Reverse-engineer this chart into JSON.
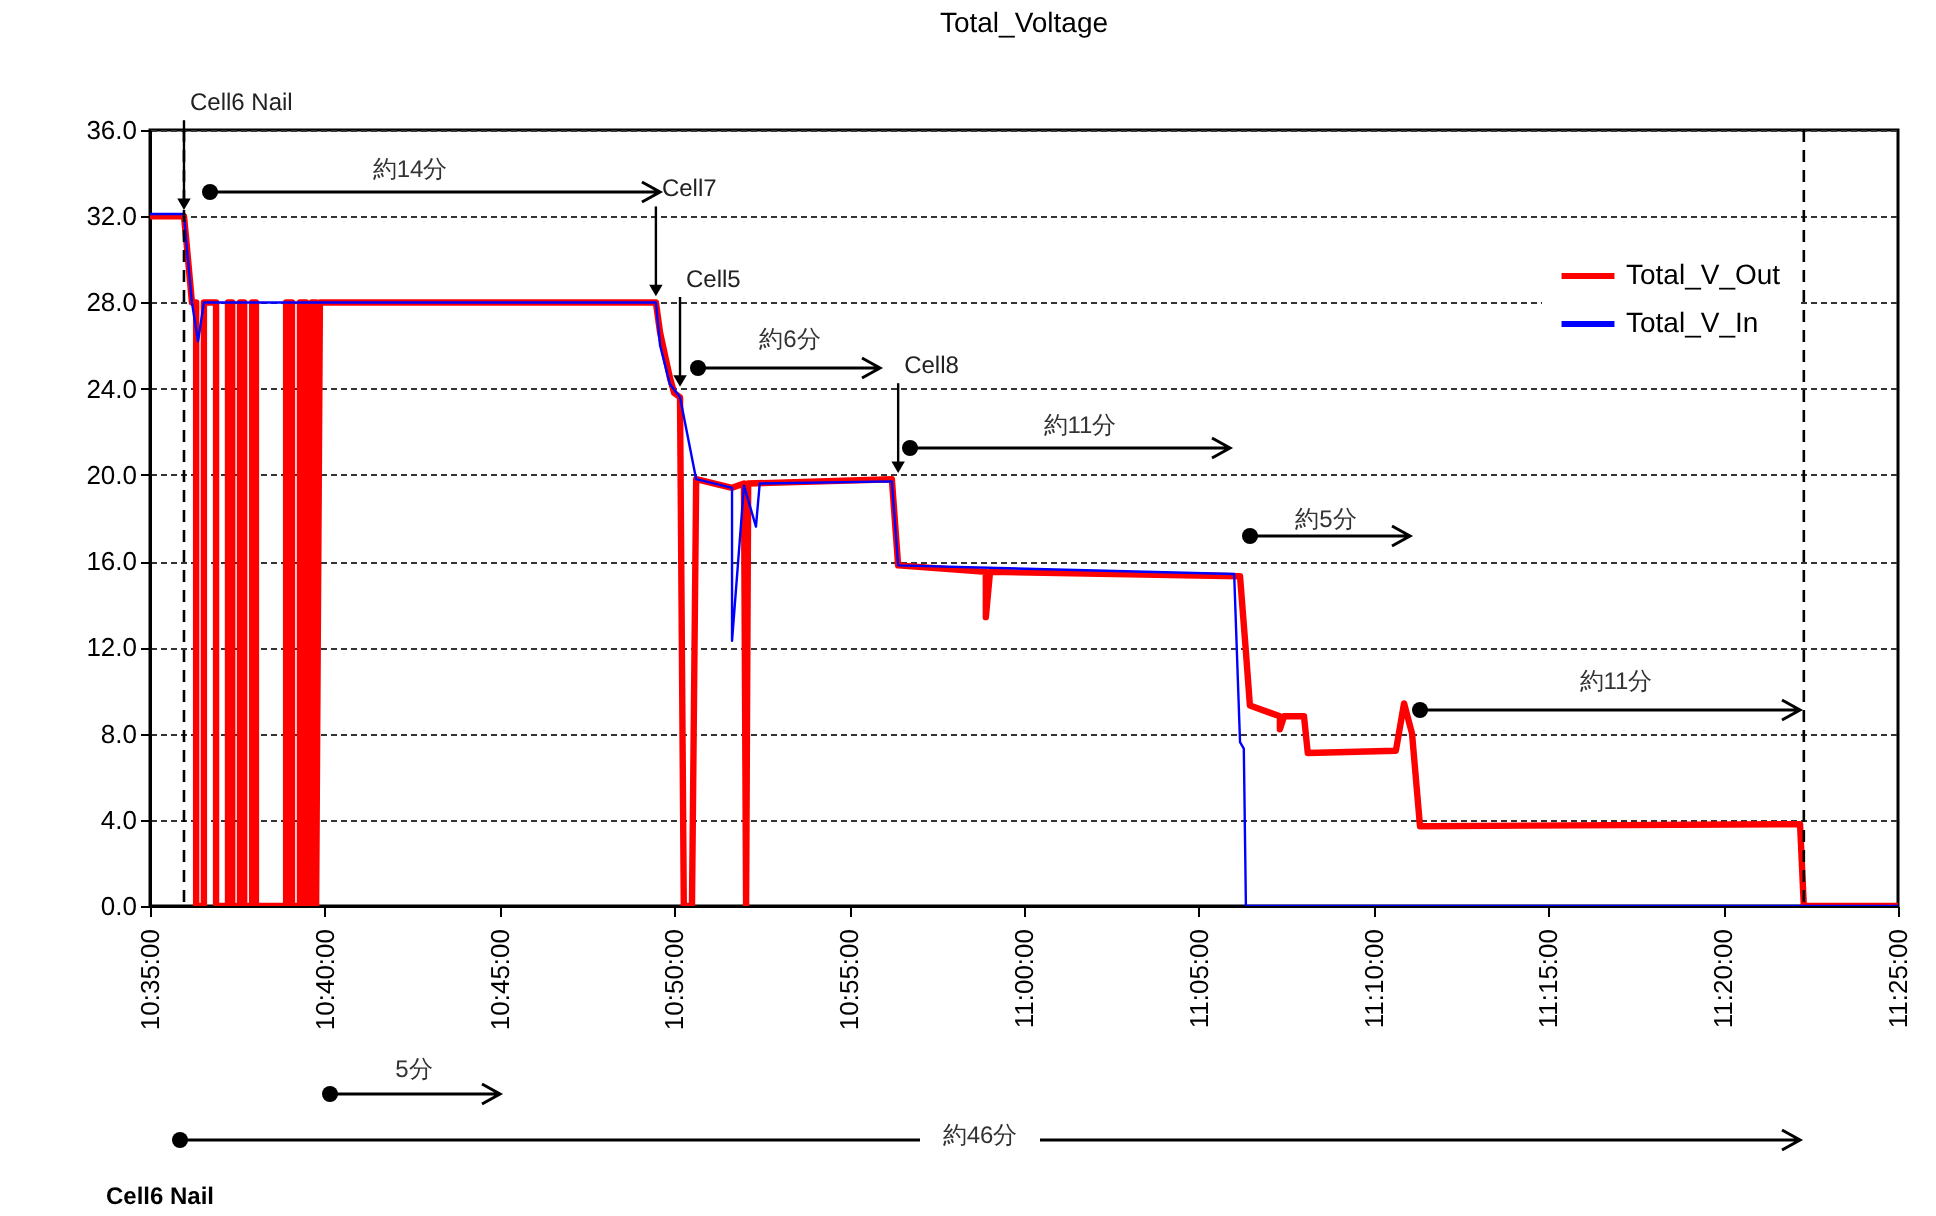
{
  "chart_data": {
    "type": "line",
    "title": "Total_Voltage",
    "xlim": [
      10.5833,
      11.4167
    ],
    "xticks": [
      {
        "value": 10.5833,
        "label": "10:35:00"
      },
      {
        "value": 10.6667,
        "label": "10:40:00"
      },
      {
        "value": 10.75,
        "label": "10:45:00"
      },
      {
        "value": 10.8333,
        "label": "10:50:00"
      },
      {
        "value": 10.9167,
        "label": "10:55:00"
      },
      {
        "value": 11.0,
        "label": "11:00:00"
      },
      {
        "value": 11.0833,
        "label": "11:05:00"
      },
      {
        "value": 11.1667,
        "label": "11:10:00"
      },
      {
        "value": 11.25,
        "label": "11:15:00"
      },
      {
        "value": 11.3333,
        "label": "11:20:00"
      },
      {
        "value": 11.4167,
        "label": "11:25:00"
      }
    ],
    "ylim": [
      0,
      36
    ],
    "yticks": [
      {
        "value": 0,
        "label": "0.0"
      },
      {
        "value": 4,
        "label": "4.0"
      },
      {
        "value": 8,
        "label": "8.0"
      },
      {
        "value": 12,
        "label": "12.0"
      },
      {
        "value": 16,
        "label": "16.0"
      },
      {
        "value": 20,
        "label": "20.0"
      },
      {
        "value": 24,
        "label": "24.0"
      },
      {
        "value": 28,
        "label": "28.0"
      },
      {
        "value": 32,
        "label": "32.0"
      },
      {
        "value": 36,
        "label": "36.0"
      }
    ],
    "grid": "y",
    "legend": "top right",
    "line_style": "solid",
    "series": [
      {
        "name": "Total_V_Out",
        "color": "#ff0000",
        "x": [
          10.5833,
          10.5995,
          10.6005,
          10.6033,
          10.6053,
          10.6053,
          10.609,
          10.609,
          10.6148,
          10.6148,
          10.6205,
          10.6205,
          10.6225,
          10.6225,
          10.6262,
          10.6262,
          10.6282,
          10.6282,
          10.632,
          10.632,
          10.6338,
          10.6338,
          10.6482,
          10.6482,
          10.651,
          10.651,
          10.6548,
          10.6548,
          10.6577,
          10.6577,
          10.6605,
          10.6605,
          10.6625,
          10.6625,
          10.6643,
          10.8245,
          10.8265,
          10.8312,
          10.8332,
          10.836,
          10.8378,
          10.8417,
          10.8437,
          10.8608,
          10.8665,
          10.8675,
          10.8685,
          10.937,
          10.94,
          10.9818,
          10.9818,
          10.9838,
          11.103,
          11.1058,
          11.1077,
          11.122,
          11.122,
          11.124,
          11.1335,
          11.1353,
          11.1773,
          11.1812,
          11.185,
          11.1888,
          11.37,
          11.3718,
          11.4167
        ],
        "values": [
          32.0,
          32.0,
          31.0,
          28.0,
          28.0,
          0,
          0,
          28.0,
          28.0,
          0,
          0,
          28.0,
          28.0,
          0,
          0,
          28.0,
          28.0,
          0,
          0,
          28.0,
          28.0,
          0,
          0,
          28.0,
          28.0,
          0,
          0,
          28.0,
          28.0,
          0,
          0,
          28.0,
          28.0,
          0,
          28.0,
          28.0,
          26.6,
          24.5,
          23.8,
          23.6,
          0,
          0,
          19.8,
          19.4,
          19.6,
          0,
          19.6,
          19.8,
          15.8,
          15.5,
          13.4,
          15.5,
          15.3,
          11.8,
          9.3,
          8.8,
          8.2,
          8.8,
          8.8,
          7.1,
          7.2,
          9.4,
          8.0,
          3.7,
          3.8,
          0,
          0
        ]
      },
      {
        "name": "Total_V_In",
        "color": "#0000ff",
        "x": [
          10.5833,
          10.5995,
          10.6005,
          10.6033,
          10.6062,
          10.609,
          10.8245,
          10.8265,
          10.8312,
          10.836,
          10.8437,
          10.8608,
          10.8608,
          10.8665,
          10.8722,
          10.874,
          10.937,
          10.94,
          11.1002,
          11.103,
          11.1048,
          11.1058,
          11.4167
        ],
        "values": [
          32.1,
          32.1,
          30.9,
          28.0,
          26.2,
          28.0,
          28.0,
          26.0,
          24.2,
          23.6,
          19.8,
          19.4,
          12.3,
          19.5,
          17.6,
          19.6,
          19.7,
          15.8,
          15.4,
          7.6,
          7.3,
          0,
          0
        ]
      }
    ],
    "ref_lines": [
      {
        "axis": "x",
        "value": 10.5995,
        "line_style": "dashed",
        "color": "#000000"
      },
      {
        "axis": "x",
        "value": 11.3718,
        "line_style": "dashed",
        "color": "#000000"
      }
    ],
    "annotations": [
      {
        "text": "Cell6 Nail",
        "x": 10.5995,
        "y": 32.0
      },
      {
        "text": "Cell7",
        "x": 10.8245,
        "y": 28.0
      },
      {
        "text": "Cell5",
        "x": 10.836,
        "y": 23.8
      },
      {
        "text": "Cell8",
        "x": 10.94,
        "y": 19.8
      },
      "約14分",
      "約6分",
      "約11分",
      "約5分",
      "約11分",
      "5分",
      "約46分",
      "Cell6 Nail"
    ]
  }
}
